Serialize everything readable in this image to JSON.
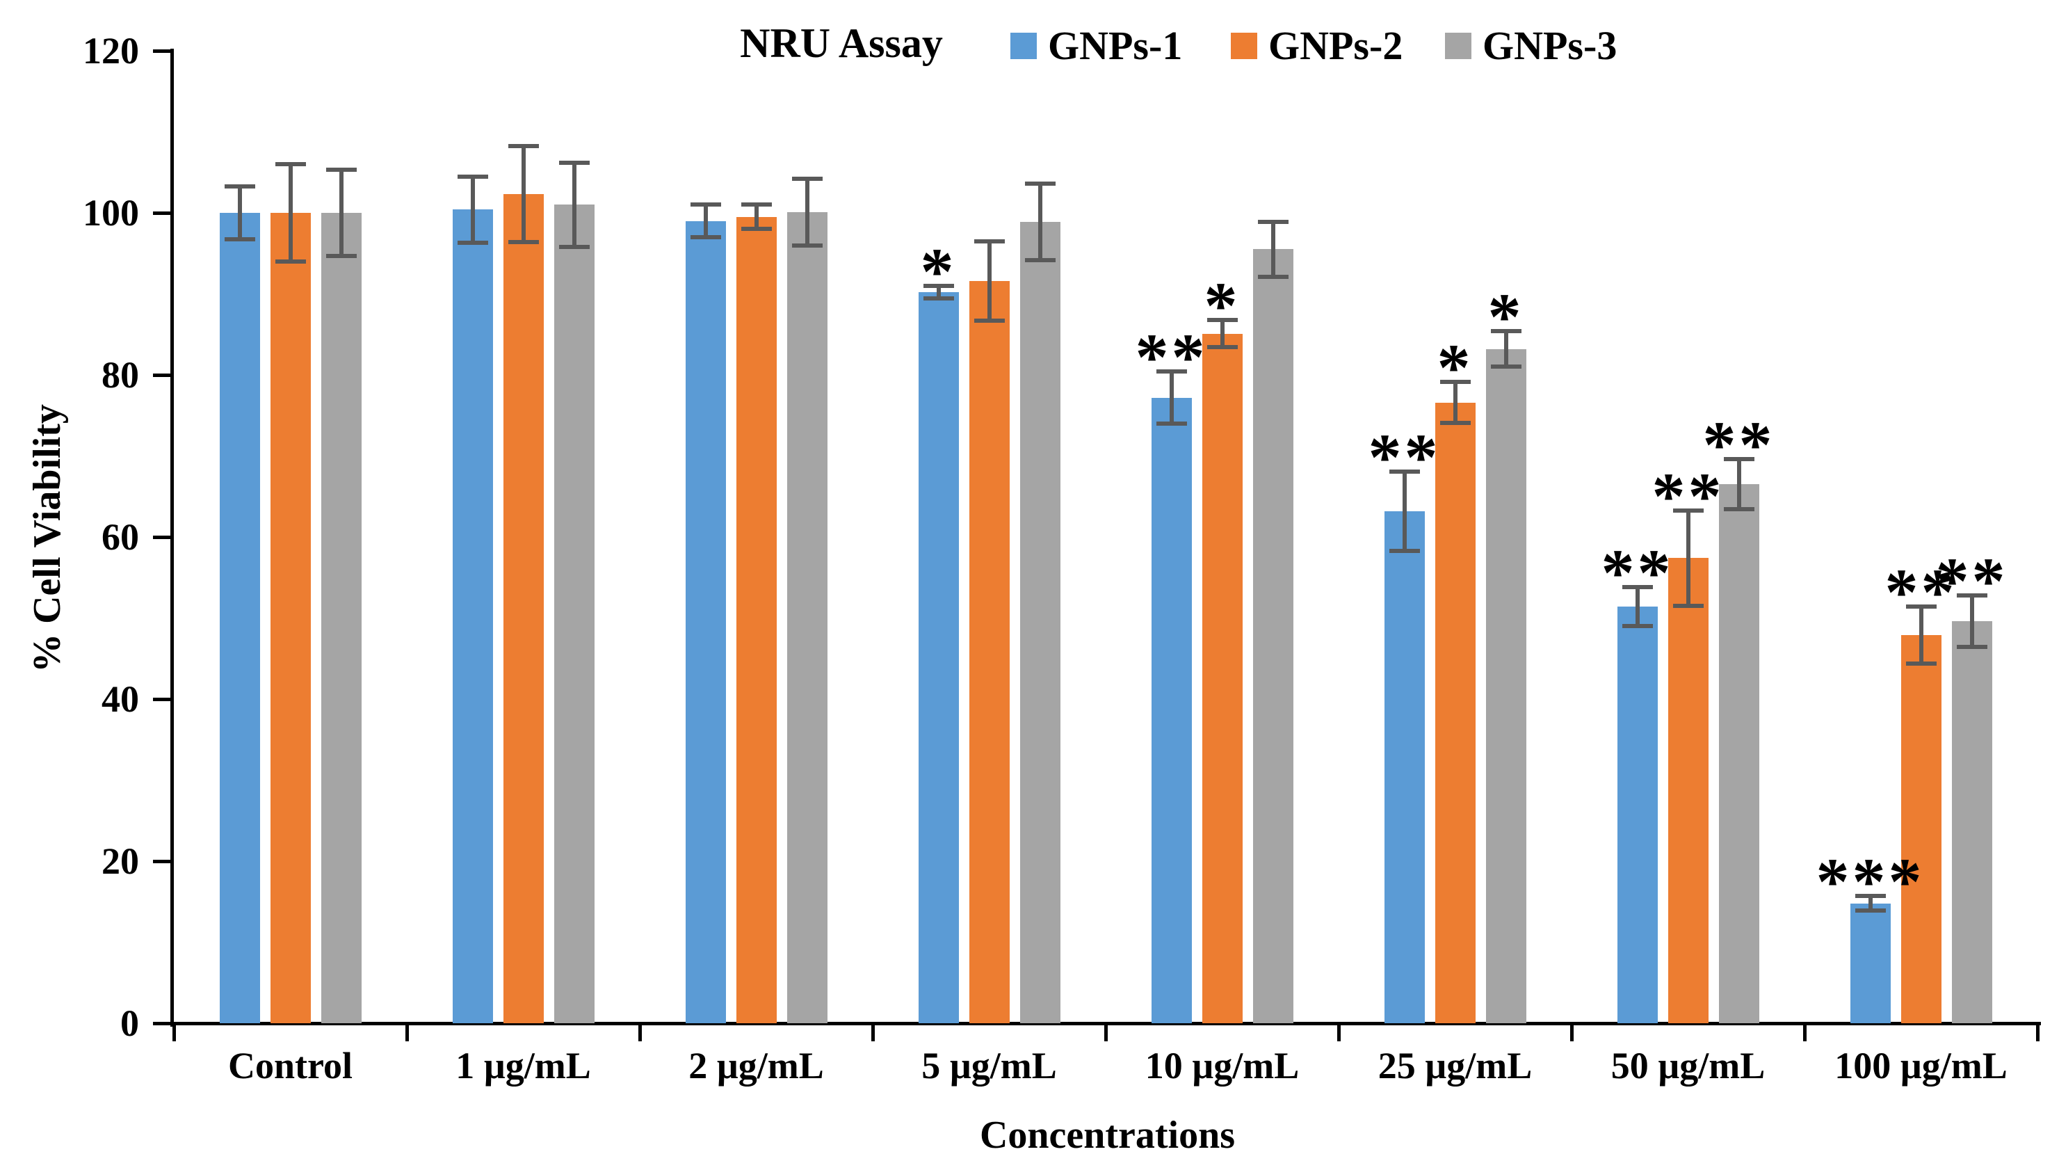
{
  "chart": {
    "title": "NRU Assay",
    "x_axis_title": "Concentrations",
    "y_axis_title": "% Cell Viability"
  },
  "chart_data": {
    "type": "bar",
    "title": "NRU Assay",
    "xlabel": "Concentrations",
    "ylabel": "% Cell Viability",
    "ylim": [
      0,
      120
    ],
    "y_ticks": [
      0,
      20,
      40,
      60,
      80,
      100,
      120
    ],
    "grid": false,
    "legend_position": "top",
    "error_bar_color": "#595959",
    "categories": [
      "Control",
      "1 µg/mL",
      "2 µg/mL",
      "5 µg/mL",
      "10 µg/mL",
      "25 µg/mL",
      "50 µg/mL",
      "100 µg/mL"
    ],
    "series": [
      {
        "name": "GNPs-1",
        "color": "#5B9BD5",
        "values": [
          100,
          100.4,
          99,
          90.2,
          77.2,
          63.2,
          51.4,
          14.8
        ],
        "errors": [
          3.3,
          4.1,
          2,
          0.8,
          3.2,
          4.9,
          2.4,
          0.9
        ],
        "significance": [
          "",
          "",
          "",
          "*",
          "**",
          "**",
          "**",
          "***"
        ]
      },
      {
        "name": "GNPs-2",
        "color": "#ED7D31",
        "values": [
          100,
          102.3,
          99.5,
          91.6,
          85.1,
          76.6,
          57.4,
          47.9
        ],
        "errors": [
          6,
          5.9,
          1.5,
          4.9,
          1.7,
          2.5,
          5.9,
          3.5
        ],
        "significance": [
          "",
          "",
          "",
          "",
          "*",
          "*",
          "**",
          "**"
        ]
      },
      {
        "name": "GNPs-3",
        "color": "#A5A5A5",
        "values": [
          100,
          101,
          100.1,
          98.9,
          95.5,
          83.2,
          66.5,
          49.6
        ],
        "errors": [
          5.3,
          5.2,
          4.1,
          4.7,
          3.4,
          2.2,
          3.1,
          3.2
        ],
        "significance": [
          "",
          "",
          "",
          "",
          "",
          "*",
          "**",
          "**"
        ]
      }
    ]
  }
}
